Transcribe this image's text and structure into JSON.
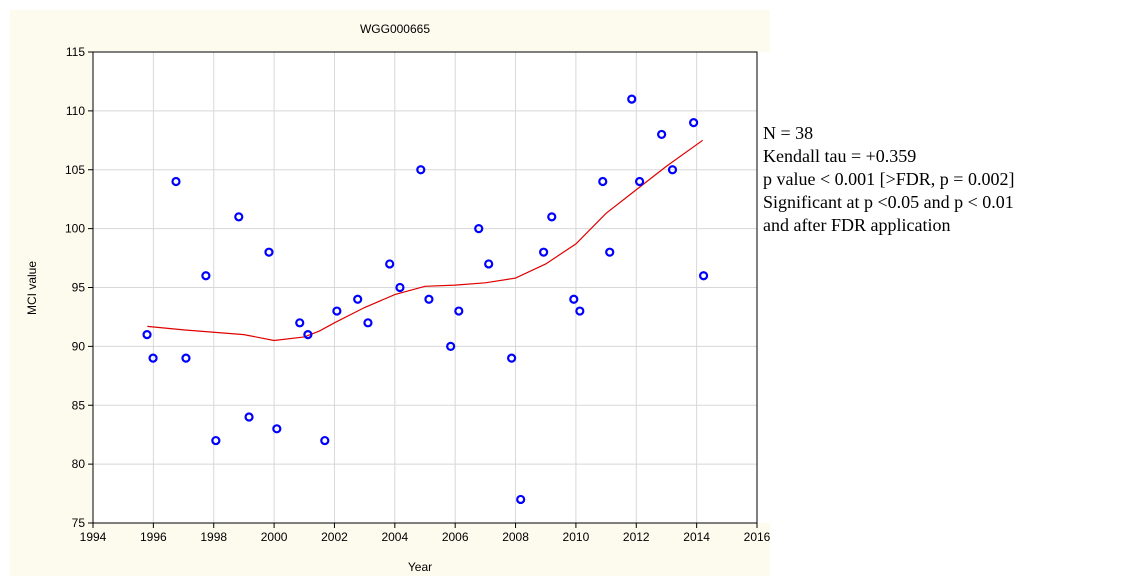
{
  "chart_data": {
    "type": "scatter",
    "title": "WGG000665",
    "xlabel": "Year",
    "ylabel": "MCI value",
    "xlim": [
      1994,
      2016
    ],
    "xticks": [
      1994,
      1996,
      1998,
      2000,
      2002,
      2004,
      2006,
      2008,
      2010,
      2012,
      2014,
      2016
    ],
    "ylim": [
      75,
      115
    ],
    "yticks": [
      75,
      80,
      85,
      90,
      95,
      100,
      105,
      110,
      115
    ],
    "grid": true,
    "marker_color": "#0000ff",
    "x": [
      1995.79,
      1995.99,
      1996.75,
      1997.08,
      1997.74,
      1998.07,
      1998.83,
      1999.17,
      1999.83,
      2000.09,
      2000.85,
      2001.12,
      2001.68,
      2002.08,
      2002.77,
      2003.11,
      2003.83,
      2004.17,
      2004.86,
      2005.13,
      2005.85,
      2006.12,
      2006.78,
      2007.11,
      2007.87,
      2008.17,
      2008.93,
      2009.2,
      2009.93,
      2010.13,
      2010.89,
      2011.12,
      2011.85,
      2012.11,
      2012.84,
      2013.2,
      2013.9,
      2014.23
    ],
    "values": [
      91,
      89,
      104,
      89,
      96,
      82,
      101,
      84,
      98,
      83,
      92,
      91,
      82,
      93,
      94,
      92,
      97,
      95,
      105,
      94,
      90,
      93,
      100,
      97,
      89,
      77,
      98,
      101,
      94,
      93,
      104,
      98,
      111,
      104,
      108,
      105,
      109,
      96
    ],
    "fit_line": {
      "color": "#e00000",
      "x": [
        1995.8,
        1997,
        1998,
        1999,
        2000,
        2001,
        2001.5,
        2002,
        2003,
        2004,
        2005,
        2006,
        2007,
        2008,
        2009,
        2010,
        2011,
        2012,
        2013,
        2014.2
      ],
      "values": [
        91.7,
        91.4,
        91.2,
        91.0,
        90.5,
        90.8,
        91.3,
        92.0,
        93.3,
        94.4,
        95.1,
        95.2,
        95.4,
        95.8,
        97.0,
        98.7,
        101.3,
        103.3,
        105.3,
        107.5
      ]
    },
    "annotations": [
      "N = 38",
      "Kendall tau = +0.359",
      "p value < 0.001 [>FDR, p = 0.002]",
      "Significant at p <0.05 and p < 0.01",
      "and after FDR application"
    ]
  }
}
